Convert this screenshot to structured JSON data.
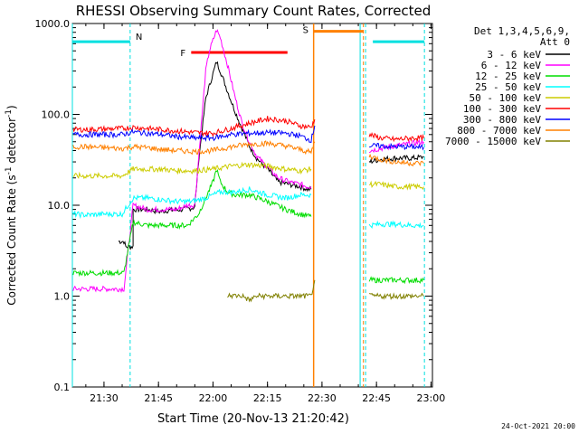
{
  "chart_data": {
    "type": "line",
    "title": "RHESSI Observing Summary Count Rates, Corrected",
    "xlabel": "Start Time (20-Nov-13 21:20:42)",
    "ylabel_main": "Corrected Count Rate (s",
    "ylabel_sup1": "-1",
    "ylabel_mid": " detector",
    "ylabel_sup2": "-1",
    "ylabel_end": ")",
    "ylog": true,
    "ylim": [
      0.1,
      1000
    ],
    "xlim_minutes": [
      21.3,
      120.4
    ],
    "x_ticks": [
      {
        "m": 30,
        "label": "21:30"
      },
      {
        "m": 45,
        "label": "21:45"
      },
      {
        "m": 60,
        "label": "22:00"
      },
      {
        "m": 75,
        "label": "22:15"
      },
      {
        "m": 90,
        "label": "22:30"
      },
      {
        "m": 105,
        "label": "22:45"
      },
      {
        "m": 120,
        "label": "23:00"
      }
    ],
    "y_ticks": [
      {
        "v": 0.1,
        "label": "0.1"
      },
      {
        "v": 1,
        "label": "1.0"
      },
      {
        "v": 10,
        "label": "10.0"
      },
      {
        "v": 100,
        "label": "100.0"
      },
      {
        "v": 1000,
        "label": "1000.0"
      }
    ],
    "legend": {
      "placement": "right",
      "header1": "Det 1,3,4,5,6,9,",
      "header2": "Att 0",
      "entries": [
        {
          "label": "3 - 6 keV",
          "color": "#000000"
        },
        {
          "label": "6 - 12 keV",
          "color": "#ff00ff"
        },
        {
          "label": "12 - 25 keV",
          "color": "#00dd00"
        },
        {
          "label": "25 - 50 keV",
          "color": "#00ffff"
        },
        {
          "label": "50 - 100 keV",
          "color": "#cccc00"
        },
        {
          "label": "100 - 300 keV",
          "color": "#ff0000"
        },
        {
          "label": "300 - 800 keV",
          "color": "#0000ff"
        },
        {
          "label": "800 - 7000 keV",
          "color": "#ff8000"
        },
        {
          "label": "7000 - 15000 keV",
          "color": "#808000"
        }
      ]
    },
    "flags": {
      "night_label": "N",
      "flare_label": "F",
      "saa_label": "S"
    },
    "series": [
      {
        "name": "3 - 6 keV",
        "color": "#000000",
        "data_segments": [
          [
            [
              34,
              4
            ],
            [
              35.5,
              4
            ],
            [
              36,
              3.5
            ],
            [
              38,
              3.5
            ],
            [
              38,
              9
            ],
            [
              42,
              9
            ],
            [
              45,
              8.5
            ],
            [
              48,
              8.8
            ],
            [
              52,
              9
            ],
            [
              55,
              9.5
            ],
            [
              56,
              30
            ],
            [
              58,
              150
            ],
            [
              60,
              280
            ],
            [
              61,
              380
            ],
            [
              62,
              300
            ],
            [
              64,
              180
            ],
            [
              66,
              110
            ],
            [
              68,
              70
            ],
            [
              70,
              45
            ],
            [
              72,
              33
            ],
            [
              75,
              25
            ],
            [
              78,
              18
            ],
            [
              81,
              17
            ],
            [
              84,
              16
            ],
            [
              86,
              15
            ],
            [
              87,
              15
            ]
          ],
          [
            [
              103,
              30
            ],
            [
              106,
              32
            ],
            [
              110,
              33
            ],
            [
              115,
              33
            ],
            [
              118,
              34
            ]
          ]
        ]
      },
      {
        "name": "6 - 12 keV",
        "color": "#ff00ff",
        "data_segments": [
          [
            [
              21.5,
              1.2
            ],
            [
              26,
              1.2
            ],
            [
              30,
              1.2
            ],
            [
              34,
              1.2
            ],
            [
              35.5,
              1.2
            ],
            [
              38,
              10
            ],
            [
              42,
              9
            ],
            [
              45,
              9
            ],
            [
              50,
              9
            ],
            [
              53,
              10
            ],
            [
              55,
              10
            ],
            [
              57,
              100
            ],
            [
              58,
              300
            ],
            [
              59,
              500
            ],
            [
              60,
              650
            ],
            [
              61,
              850
            ],
            [
              62,
              700
            ],
            [
              64,
              350
            ],
            [
              66,
              160
            ],
            [
              68,
              80
            ],
            [
              70,
              50
            ],
            [
              72,
              35
            ],
            [
              75,
              26
            ],
            [
              78,
              20
            ],
            [
              81,
              18
            ],
            [
              84,
              17
            ],
            [
              86,
              16
            ],
            [
              87,
              16
            ]
          ],
          [
            [
              103,
              40
            ],
            [
              106,
              42
            ],
            [
              110,
              45
            ],
            [
              115,
              48
            ],
            [
              118,
              50
            ]
          ]
        ]
      },
      {
        "name": "12 - 25 keV",
        "color": "#00dd00",
        "data_segments": [
          [
            [
              21.5,
              1.8
            ],
            [
              26,
              1.8
            ],
            [
              30,
              1.8
            ],
            [
              34,
              1.8
            ],
            [
              35.5,
              1.8
            ],
            [
              38,
              6.5
            ],
            [
              42,
              6
            ],
            [
              46,
              6
            ],
            [
              50,
              6
            ],
            [
              53,
              6
            ],
            [
              56,
              8
            ],
            [
              58,
              12
            ],
            [
              60,
              18
            ],
            [
              61,
              25
            ],
            [
              62,
              18
            ],
            [
              64,
              14
            ],
            [
              66,
              13
            ],
            [
              70,
              13
            ],
            [
              75,
              11
            ],
            [
              80,
              9
            ],
            [
              84,
              8
            ],
            [
              87,
              7.5
            ]
          ],
          [
            [
              103,
              1.5
            ],
            [
              106,
              1.5
            ],
            [
              110,
              1.5
            ],
            [
              115,
              1.5
            ],
            [
              118,
              1.5
            ]
          ]
        ]
      },
      {
        "name": "25 - 50 keV",
        "color": "#00ffff",
        "data_segments": [
          [
            [
              21.5,
              8
            ],
            [
              25,
              7.8
            ],
            [
              30,
              8
            ],
            [
              35,
              8
            ],
            [
              38,
              12
            ],
            [
              42,
              12
            ],
            [
              46,
              11.5
            ],
            [
              50,
              11
            ],
            [
              54,
              11
            ],
            [
              58,
              12
            ],
            [
              62,
              14
            ],
            [
              66,
              14
            ],
            [
              70,
              15
            ],
            [
              75,
              13
            ],
            [
              80,
              12
            ],
            [
              84,
              13
            ],
            [
              87,
              13
            ]
          ],
          [
            [
              103,
              6
            ],
            [
              106,
              6.2
            ],
            [
              110,
              6.2
            ],
            [
              115,
              6
            ],
            [
              118,
              6
            ]
          ]
        ]
      },
      {
        "name": "50 - 100 keV",
        "color": "#cccc00",
        "data_segments": [
          [
            [
              21.5,
              21
            ],
            [
              25,
              21
            ],
            [
              30,
              21
            ],
            [
              35,
              21
            ],
            [
              38,
              25
            ],
            [
              42,
              25
            ],
            [
              46,
              25
            ],
            [
              50,
              24
            ],
            [
              55,
              24
            ],
            [
              60,
              25
            ],
            [
              65,
              27
            ],
            [
              70,
              28
            ],
            [
              75,
              27
            ],
            [
              80,
              25
            ],
            [
              84,
              24
            ],
            [
              87,
              25
            ]
          ],
          [
            [
              103,
              17
            ],
            [
              106,
              17
            ],
            [
              110,
              16
            ],
            [
              115,
              16
            ],
            [
              118,
              16
            ]
          ]
        ]
      },
      {
        "name": "100 - 300 keV",
        "color": "#ff0000",
        "data_segments": [
          [
            [
              21.5,
              68
            ],
            [
              25,
              68
            ],
            [
              30,
              69
            ],
            [
              35,
              70
            ],
            [
              38,
              72
            ],
            [
              42,
              70
            ],
            [
              46,
              68
            ],
            [
              50,
              66
            ],
            [
              55,
              63
            ],
            [
              60,
              62
            ],
            [
              65,
              70
            ],
            [
              70,
              80
            ],
            [
              75,
              90
            ],
            [
              80,
              85
            ],
            [
              84,
              75
            ],
            [
              87,
              72
            ],
            [
              88,
              88
            ]
          ],
          [
            [
              103,
              60
            ],
            [
              106,
              55
            ],
            [
              110,
              53
            ],
            [
              115,
              55
            ],
            [
              118,
              55
            ]
          ]
        ]
      },
      {
        "name": "300 - 800 keV",
        "color": "#0000ff",
        "data_segments": [
          [
            [
              21.5,
              60
            ],
            [
              25,
              60
            ],
            [
              30,
              60
            ],
            [
              35,
              60
            ],
            [
              38,
              64
            ],
            [
              42,
              62
            ],
            [
              46,
              60
            ],
            [
              50,
              57
            ],
            [
              55,
              55
            ],
            [
              60,
              55
            ],
            [
              65,
              60
            ],
            [
              70,
              62
            ],
            [
              75,
              63
            ],
            [
              80,
              62
            ],
            [
              84,
              58
            ],
            [
              87,
              52
            ],
            [
              88,
              75
            ]
          ],
          [
            [
              103,
              45
            ],
            [
              106,
              45
            ],
            [
              110,
              44
            ],
            [
              115,
              44
            ],
            [
              118,
              43
            ]
          ]
        ]
      },
      {
        "name": "800 - 7000 keV",
        "color": "#ff8000",
        "data_segments": [
          [
            [
              21.5,
              44
            ],
            [
              25,
              44
            ],
            [
              30,
              43
            ],
            [
              35,
              42
            ],
            [
              38,
              44
            ],
            [
              42,
              43
            ],
            [
              46,
              41
            ],
            [
              50,
              40
            ],
            [
              55,
              39
            ],
            [
              60,
              40
            ],
            [
              65,
              44
            ],
            [
              70,
              47
            ],
            [
              75,
              48
            ],
            [
              80,
              45
            ],
            [
              84,
              41
            ],
            [
              87,
              38
            ],
            [
              88,
              50
            ]
          ],
          [
            [
              103,
              35
            ],
            [
              106,
              32
            ],
            [
              110,
              30
            ],
            [
              115,
              29
            ],
            [
              118,
              29
            ]
          ]
        ]
      },
      {
        "name": "7000 - 15000 keV",
        "color": "#808000",
        "data_segments": [
          [
            [
              64,
              1.01
            ],
            [
              66,
              1.01
            ],
            [
              68,
              1.01
            ],
            [
              70,
              0.9
            ],
            [
              72,
              1.0
            ],
            [
              75,
              1.0
            ],
            [
              78,
              1.0
            ],
            [
              82,
              1.0
            ],
            [
              86,
              1.0
            ],
            [
              87,
              1.0
            ],
            [
              88,
              1.5
            ]
          ],
          [
            [
              103,
              1.0
            ],
            [
              106,
              1.0
            ],
            [
              110,
              1.0
            ],
            [
              115,
              1.0
            ],
            [
              118,
              1.0
            ]
          ]
        ]
      }
    ]
  },
  "footer": {
    "date": "24-Oct-2021 20:00"
  }
}
